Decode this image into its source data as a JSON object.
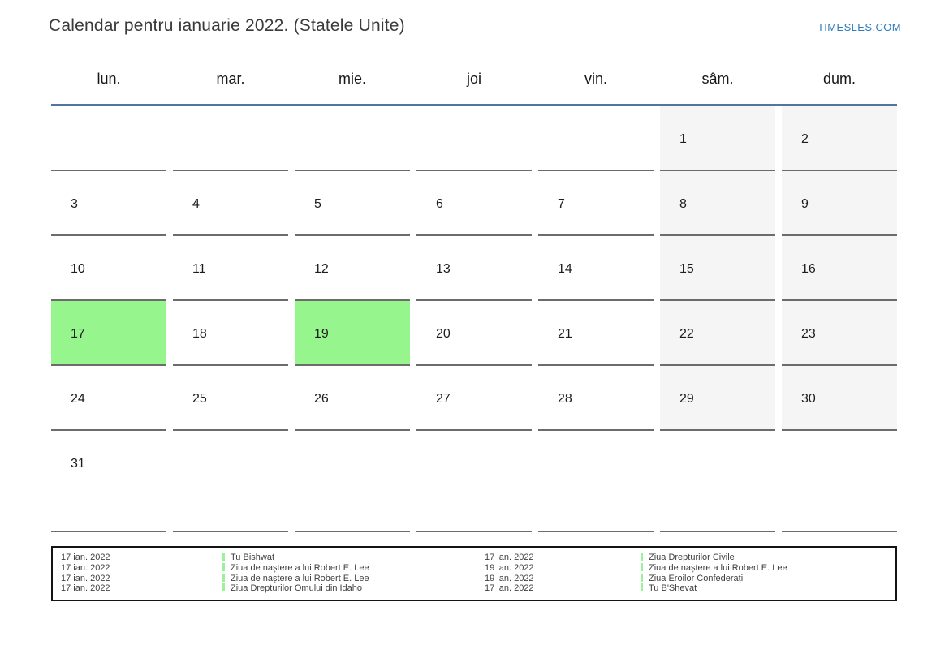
{
  "header": {
    "title": "Calendar pentru ianuarie 2022. (Statele Unite)",
    "brand": "TIMESLES.COM"
  },
  "calendar": {
    "weekdays": [
      "lun.",
      "mar.",
      "mie.",
      "joi",
      "vin.",
      "sâm.",
      "dum."
    ],
    "weeks": [
      [
        "",
        "",
        "",
        "",
        "",
        "1",
        "2"
      ],
      [
        "3",
        "4",
        "5",
        "6",
        "7",
        "8",
        "9"
      ],
      [
        "10",
        "11",
        "12",
        "13",
        "14",
        "15",
        "16"
      ],
      [
        "17",
        "18",
        "19",
        "20",
        "21",
        "22",
        "23"
      ],
      [
        "24",
        "25",
        "26",
        "27",
        "28",
        "29",
        "30"
      ],
      [
        "31",
        "",
        "",
        "",
        "",
        "",
        ""
      ]
    ],
    "weekend_columns": [
      5,
      6
    ],
    "highlighted_days": [
      "17",
      "19"
    ]
  },
  "legend": {
    "entries": [
      {
        "date": "17 ian. 2022",
        "event": "Tu Bishwat"
      },
      {
        "date": "17 ian. 2022",
        "event": "Ziua de naștere a lui Robert E. Lee"
      },
      {
        "date": "17 ian. 2022",
        "event": "Ziua de naștere a lui Robert E. Lee"
      },
      {
        "date": "17 ian. 2022",
        "event": "Ziua Drepturilor Omului din Idaho"
      },
      {
        "date": "17 ian. 2022",
        "event": "Ziua Drepturilor Civile"
      },
      {
        "date": "19 ian. 2022",
        "event": "Ziua de naștere a lui Robert E. Lee"
      },
      {
        "date": "19 ian. 2022",
        "event": "Ziua Eroilor Confederați"
      },
      {
        "date": "17 ian. 2022",
        "event": "Tu B'Shevat"
      }
    ]
  },
  "colors": {
    "highlight_green": "#96f58c",
    "weekend_gray": "#f5f5f5",
    "header_line_blue": "#52749e",
    "brand_blue": "#2b7abd",
    "event_marker_green": "#9cf29a"
  }
}
